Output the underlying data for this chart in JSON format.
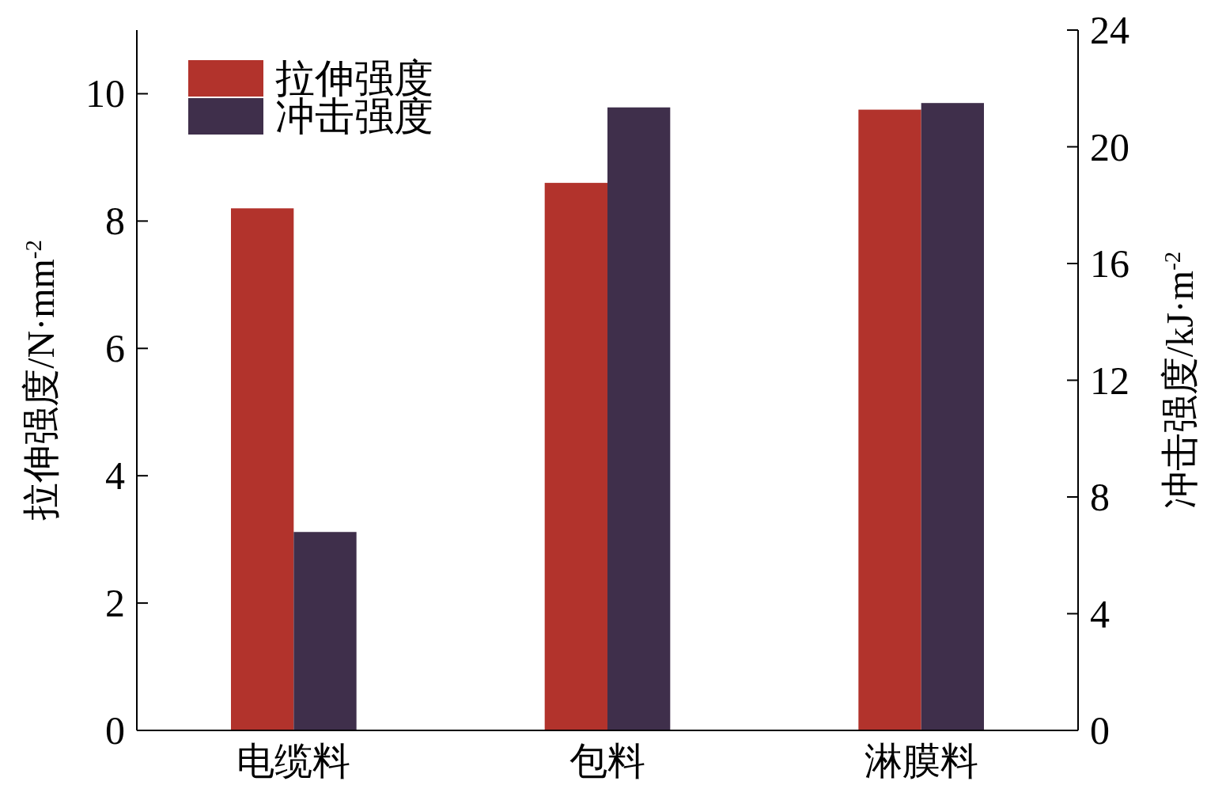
{
  "chart_data": {
    "type": "bar",
    "categories": [
      "电缆料",
      "包料",
      "淋膜料"
    ],
    "series": [
      {
        "name": "拉伸强度",
        "color": "#b2332c",
        "values": [
          8.2,
          8.6,
          9.75
        ]
      },
      {
        "name": "冲击强度",
        "color": "#3f2f4b",
        "values": [
          6.8,
          21.35,
          21.5
        ],
        "axis": "y2"
      }
    ],
    "ylabel": "拉伸强度/N·mm$^{-2}$",
    "y2label": "冲击强度/kJ·m$^{-2}$",
    "ylim": [
      0,
      11
    ],
    "yticks": [
      0,
      2,
      4,
      6,
      8,
      10
    ],
    "y2lim": [
      0,
      24
    ],
    "y2ticks": [
      0,
      4,
      8,
      12,
      16,
      20,
      24
    ],
    "legend": "top left",
    "grid": false
  }
}
